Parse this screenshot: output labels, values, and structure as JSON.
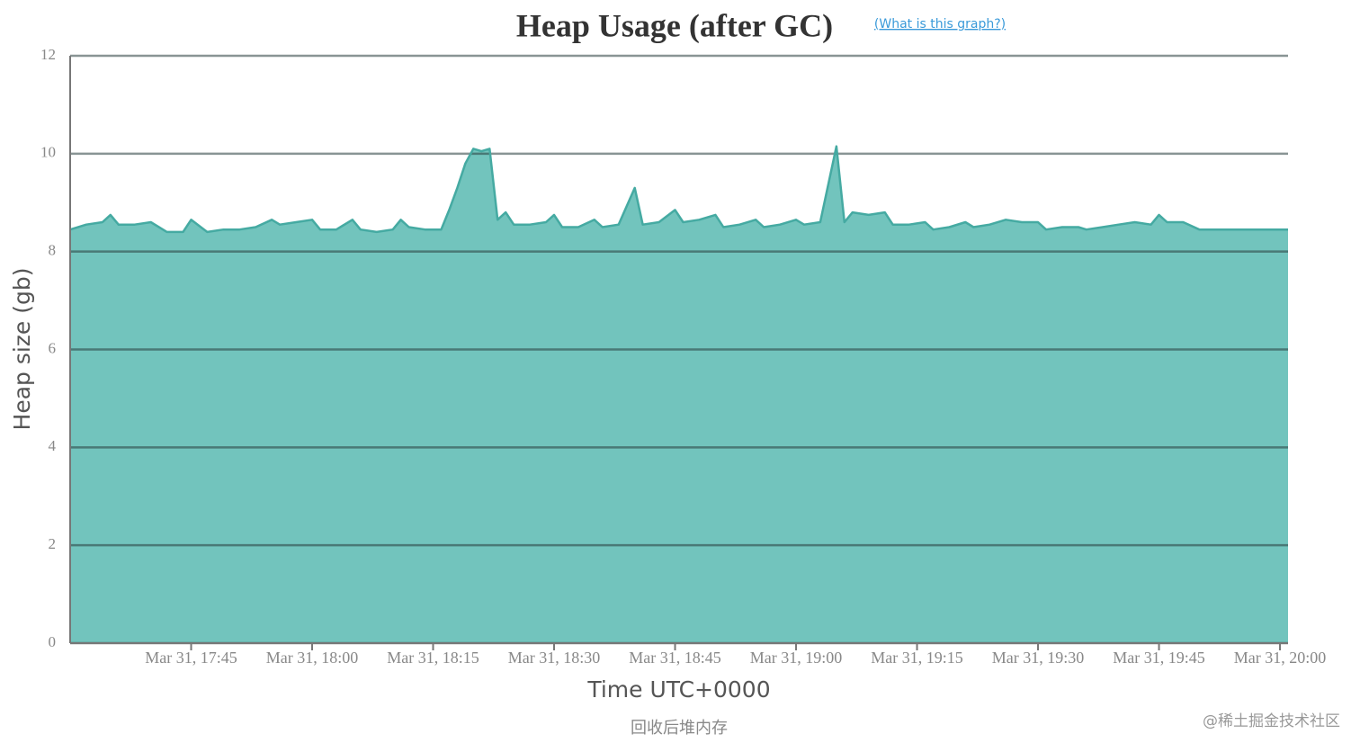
{
  "chart_data": {
    "type": "area",
    "title": "Heap Usage (after GC)",
    "link": "(What is this graph?)",
    "x_label": "Time UTC+0000",
    "y_label": "Heap size (gb)",
    "color": "#72c4bd",
    "line_color": "#45aaa2",
    "grid": true,
    "xlim": [
      "Mar 31, 17:30",
      "Mar 31, 20:01"
    ],
    "xticks": [
      "Mar 31, 17:45",
      "Mar 31, 18:00",
      "Mar 31, 18:15",
      "Mar 31, 18:30",
      "Mar 31, 18:45",
      "Mar 31, 19:00",
      "Mar 31, 19:15",
      "Mar 31, 19:30",
      "Mar 31, 19:45",
      "Mar 31, 20:00"
    ],
    "ylim": [
      0,
      12
    ],
    "yticks": [
      0,
      2,
      4,
      6,
      8,
      10,
      12
    ],
    "x": [
      "Mar 31, 17:30",
      "Mar 31, 17:32",
      "Mar 31, 17:34",
      "Mar 31, 17:35",
      "Mar 31, 17:36",
      "Mar 31, 17:38",
      "Mar 31, 17:40",
      "Mar 31, 17:42",
      "Mar 31, 17:44",
      "Mar 31, 17:45",
      "Mar 31, 17:47",
      "Mar 31, 17:49",
      "Mar 31, 17:51",
      "Mar 31, 17:53",
      "Mar 31, 17:55",
      "Mar 31, 17:56",
      "Mar 31, 17:58",
      "Mar 31, 18:00",
      "Mar 31, 18:01",
      "Mar 31, 18:03",
      "Mar 31, 18:05",
      "Mar 31, 18:06",
      "Mar 31, 18:08",
      "Mar 31, 18:10",
      "Mar 31, 18:11",
      "Mar 31, 18:12",
      "Mar 31, 18:14",
      "Mar 31, 18:16",
      "Mar 31, 18:17",
      "Mar 31, 18:18",
      "Mar 31, 18:19",
      "Mar 31, 18:20",
      "Mar 31, 18:21",
      "Mar 31, 18:22",
      "Mar 31, 18:23",
      "Mar 31, 18:24",
      "Mar 31, 18:25",
      "Mar 31, 18:27",
      "Mar 31, 18:29",
      "Mar 31, 18:30",
      "Mar 31, 18:31",
      "Mar 31, 18:33",
      "Mar 31, 18:35",
      "Mar 31, 18:36",
      "Mar 31, 18:38",
      "Mar 31, 18:40",
      "Mar 31, 18:41",
      "Mar 31, 18:43",
      "Mar 31, 18:45",
      "Mar 31, 18:46",
      "Mar 31, 18:48",
      "Mar 31, 18:50",
      "Mar 31, 18:51",
      "Mar 31, 18:53",
      "Mar 31, 18:55",
      "Mar 31, 18:56",
      "Mar 31, 18:58",
      "Mar 31, 19:00",
      "Mar 31, 19:01",
      "Mar 31, 19:03",
      "Mar 31, 19:05",
      "Mar 31, 19:06",
      "Mar 31, 19:07",
      "Mar 31, 19:09",
      "Mar 31, 19:11",
      "Mar 31, 19:12",
      "Mar 31, 19:14",
      "Mar 31, 19:16",
      "Mar 31, 19:17",
      "Mar 31, 19:19",
      "Mar 31, 19:21",
      "Mar 31, 19:22",
      "Mar 31, 19:24",
      "Mar 31, 19:26",
      "Mar 31, 19:28",
      "Mar 31, 19:30",
      "Mar 31, 19:31",
      "Mar 31, 19:33",
      "Mar 31, 19:35",
      "Mar 31, 19:36",
      "Mar 31, 19:38",
      "Mar 31, 19:40",
      "Mar 31, 19:42",
      "Mar 31, 19:44",
      "Mar 31, 19:45",
      "Mar 31, 19:46",
      "Mar 31, 19:48",
      "Mar 31, 19:50",
      "Mar 31, 19:52",
      "Mar 31, 19:54",
      "Mar 31, 19:56",
      "Mar 31, 20:00",
      "Mar 31, 20:01"
    ],
    "values": [
      8.45,
      8.55,
      8.6,
      8.75,
      8.55,
      8.55,
      8.6,
      8.4,
      8.4,
      8.65,
      8.4,
      8.45,
      8.45,
      8.5,
      8.65,
      8.55,
      8.6,
      8.65,
      8.45,
      8.45,
      8.65,
      8.45,
      8.4,
      8.45,
      8.65,
      8.5,
      8.45,
      8.45,
      8.85,
      9.3,
      9.8,
      10.1,
      10.05,
      10.1,
      8.65,
      8.8,
      8.55,
      8.55,
      8.6,
      8.75,
      8.5,
      8.5,
      8.65,
      8.5,
      8.55,
      9.3,
      8.55,
      8.6,
      8.85,
      8.6,
      8.65,
      8.75,
      8.5,
      8.55,
      8.65,
      8.5,
      8.55,
      8.65,
      8.55,
      8.6,
      10.15,
      8.6,
      8.8,
      8.75,
      8.8,
      8.55,
      8.55,
      8.6,
      8.45,
      8.5,
      8.6,
      8.5,
      8.55,
      8.65,
      8.6,
      8.6,
      8.45,
      8.5,
      8.5,
      8.45,
      8.5,
      8.55,
      8.6,
      8.55,
      8.75,
      8.6,
      8.6,
      8.45,
      8.45,
      8.45,
      8.45,
      8.45,
      8.45
    ]
  },
  "caption": "回收后堆内存",
  "watermark": "@稀土掘金技术社区"
}
